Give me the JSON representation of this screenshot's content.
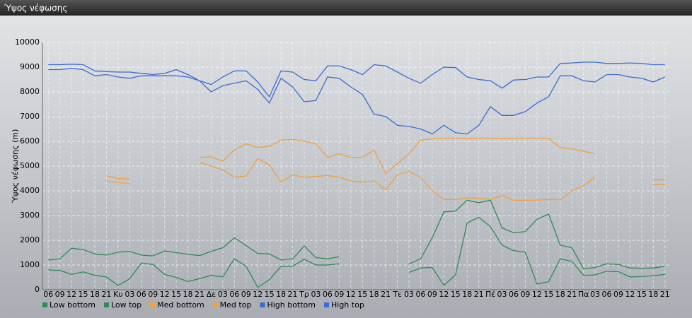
{
  "header": {
    "title": "Ύψος νέφωσης"
  },
  "chart_data": {
    "type": "line",
    "y_label": "Ύψος νέφωσης (m)",
    "categories": [
      "06",
      "09",
      "12",
      "15",
      "18",
      "21",
      "Κυ",
      "03",
      "06",
      "09",
      "12",
      "15",
      "18",
      "21",
      "Δε",
      "03",
      "06",
      "09",
      "12",
      "15",
      "18",
      "21",
      "Τρ",
      "03",
      "06",
      "09",
      "12",
      "15",
      "18",
      "21",
      "Τε",
      "03",
      "06",
      "09",
      "12",
      "15",
      "18",
      "21",
      "Πέ",
      "03",
      "06",
      "09",
      "12",
      "15",
      "18",
      "21",
      "Πα",
      "03",
      "06",
      "09",
      "12",
      "15",
      "18",
      "21"
    ],
    "ylim": [
      0,
      10000
    ],
    "yticks": [
      0,
      1000,
      2000,
      3000,
      4000,
      5000,
      6000,
      7000,
      8000,
      9000,
      10000
    ],
    "grid": true,
    "legend": "bottom",
    "series": [
      {
        "name": "Low bottom",
        "color": "#2e8b57",
        "values": [
          800,
          780,
          620,
          720,
          580,
          520,
          170,
          450,
          1080,
          1020,
          620,
          500,
          330,
          450,
          580,
          520,
          1250,
          950,
          100,
          400,
          950,
          950,
          1230,
          1000,
          1000,
          1050,
          null,
          null,
          null,
          null,
          null,
          700,
          880,
          900,
          180,
          600,
          2700,
          2930,
          2550,
          1800,
          1580,
          1520,
          230,
          320,
          1250,
          1150,
          580,
          600,
          750,
          730,
          520,
          530,
          570,
          620
        ]
      },
      {
        "name": "Low top",
        "color": "#2e8b57",
        "values": [
          1200,
          1250,
          1680,
          1620,
          1450,
          1400,
          1520,
          1550,
          1400,
          1370,
          1570,
          1500,
          1430,
          1380,
          1550,
          1700,
          2100,
          1780,
          1470,
          1450,
          1200,
          1250,
          1770,
          1300,
          1250,
          1330,
          null,
          null,
          null,
          null,
          null,
          1050,
          1250,
          2100,
          3150,
          3180,
          3620,
          3520,
          3620,
          2500,
          2300,
          2350,
          2850,
          3060,
          1800,
          1700,
          850,
          900,
          1050,
          1020,
          880,
          870,
          880,
          950
        ]
      },
      {
        "name": "Med bottom",
        "color": "#f0a040",
        "values": [
          null,
          null,
          null,
          null,
          null,
          4400,
          4330,
          4300,
          null,
          null,
          null,
          null,
          null,
          5150,
          5000,
          4850,
          4550,
          4600,
          5300,
          5050,
          4350,
          4650,
          4550,
          4580,
          4620,
          4550,
          4400,
          4350,
          4400,
          4050,
          4650,
          4780,
          4550,
          4000,
          3650,
          3650,
          3720,
          3700,
          3650,
          3800,
          3620,
          3620,
          3620,
          3650,
          3640,
          4000,
          4200,
          4560,
          null,
          null,
          null,
          null,
          4250,
          4250
        ]
      },
      {
        "name": "Med top",
        "color": "#f0a040",
        "values": [
          null,
          null,
          null,
          null,
          null,
          4600,
          4500,
          4480,
          null,
          null,
          null,
          null,
          null,
          5350,
          5370,
          5200,
          5650,
          5900,
          5750,
          5800,
          6050,
          6080,
          6000,
          5900,
          5350,
          5500,
          5350,
          5350,
          5650,
          4700,
          5100,
          5500,
          6050,
          6100,
          6130,
          6130,
          6120,
          6130,
          6130,
          6120,
          6100,
          6130,
          6130,
          6120,
          5750,
          5700,
          5600,
          5500,
          null,
          null,
          null,
          null,
          4450,
          4450
        ]
      },
      {
        "name": "High bottom",
        "color": "#3d6bd6",
        "values": [
          8900,
          8900,
          8950,
          8900,
          8650,
          8700,
          8600,
          8550,
          8650,
          8650,
          8650,
          8650,
          8600,
          8450,
          8000,
          8250,
          8350,
          8450,
          8100,
          7550,
          8550,
          8200,
          7600,
          7650,
          8600,
          8550,
          8200,
          7900,
          7100,
          7000,
          6650,
          6600,
          6500,
          6300,
          6650,
          6350,
          6300,
          6650,
          7400,
          7050,
          7050,
          7200,
          7550,
          7800,
          8650,
          8650,
          8450,
          8400,
          8700,
          8700,
          8600,
          8550,
          8400,
          8600
        ]
      },
      {
        "name": "High top",
        "color": "#3d6bd6",
        "values": [
          9100,
          9100,
          9120,
          9100,
          8850,
          8820,
          8800,
          8800,
          8750,
          8700,
          8750,
          8900,
          8700,
          8450,
          8300,
          8600,
          8850,
          8850,
          8400,
          7800,
          8850,
          8800,
          8500,
          8450,
          9050,
          9050,
          8900,
          8700,
          9100,
          9050,
          8800,
          8550,
          8350,
          8700,
          9000,
          8980,
          8600,
          8500,
          8450,
          8150,
          8480,
          8500,
          8600,
          8600,
          9150,
          9170,
          9200,
          9200,
          9150,
          9150,
          9170,
          9150,
          9100,
          9100
        ]
      }
    ]
  }
}
